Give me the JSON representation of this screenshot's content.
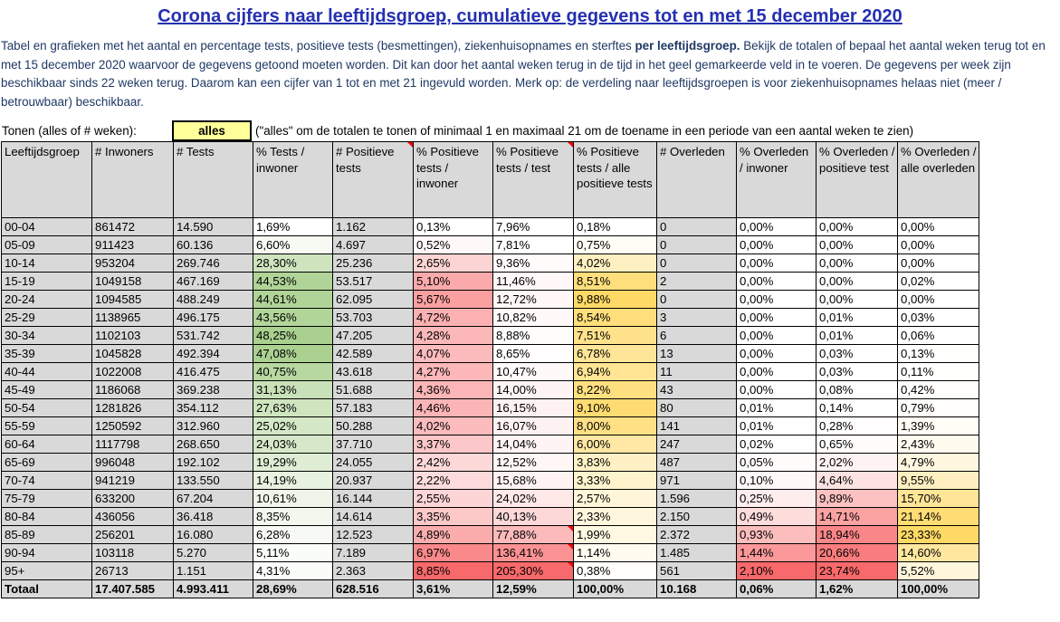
{
  "page": {
    "title": "Corona cijfers naar leeftijdsgroep, cumulatieve gegevens tot en met 15 december 2020",
    "intro": {
      "before": "Tabel en grafieken met het aantal en percentage tests, positieve tests (besmettingen), ziekenhuisopnames en sterftes ",
      "bold": "per leeftijdsgroep.",
      "after": " Bekijk de totalen of bepaal het aantal weken terug tot en met 15 december 2020 waarvoor de gegevens getoond moeten worden. Dit kan door het aantal weken terug in de tijd in het geel gemarkeerde veld in te voeren. De gegevens per week zijn beschikbaar sinds 22 weken terug. Daarom kan een cijfer van 1 tot en met 21 ingevuld worden. Merk op: de verdeling naar leeftijdsgroepen is voor ziekenhuisopnames helaas niet (meer / betrouwbaar) beschikbaar."
    }
  },
  "controls": {
    "label": "Tonen (alles of # weken):",
    "value": "alles",
    "hint": "(\"alles\" om de totalen te tonen of minimaal 1 en maximaal 21 om de toename in een periode van een aantal weken te zien)"
  },
  "colors": {
    "cell_gray": "#D9D9D9",
    "accent_yellow": "#FFFF99",
    "title_blue": "#2430B0",
    "text_blue": "#1F3864",
    "comment_red": "#FF0000",
    "scale_green": "#A9D08E",
    "scale_red": "#F8696B",
    "scale_yellow": "#FFD966"
  },
  "table": {
    "headers": [
      "Leeftijdsgroep",
      "# Inwoners",
      "# Tests",
      "% Tests / inwoner",
      "# Positieve tests",
      "% Positieve tests / inwoner",
      "% Positieve tests / test",
      "% Positieve tests / alle positieve tests",
      "# Overleden",
      "% Overleden / inwoner",
      "% Overleden / positieve test",
      "% Overleden / alle overleden"
    ],
    "header_comment_cols": [
      4,
      6
    ],
    "cell_comments": [
      {
        "row": 17,
        "col": 6
      },
      {
        "row": 18,
        "col": 6
      },
      {
        "row": 19,
        "col": 6
      }
    ],
    "rows": [
      [
        "00-04",
        "861472",
        "14.590",
        "1,69%",
        "1.162",
        "0,13%",
        "7,96%",
        "0,18%",
        "0",
        "0,00%",
        "0,00%",
        "0,00%"
      ],
      [
        "05-09",
        "911423",
        "60.136",
        "6,60%",
        "4.697",
        "0,52%",
        "7,81%",
        "0,75%",
        "0",
        "0,00%",
        "0,00%",
        "0,00%"
      ],
      [
        "10-14",
        "953204",
        "269.746",
        "28,30%",
        "25.236",
        "2,65%",
        "9,36%",
        "4,02%",
        "0",
        "0,00%",
        "0,00%",
        "0,00%"
      ],
      [
        "15-19",
        "1049158",
        "467.169",
        "44,53%",
        "53.517",
        "5,10%",
        "11,46%",
        "8,51%",
        "2",
        "0,00%",
        "0,00%",
        "0,02%"
      ],
      [
        "20-24",
        "1094585",
        "488.249",
        "44,61%",
        "62.095",
        "5,67%",
        "12,72%",
        "9,88%",
        "0",
        "0,00%",
        "0,00%",
        "0,00%"
      ],
      [
        "25-29",
        "1138965",
        "496.175",
        "43,56%",
        "53.703",
        "4,72%",
        "10,82%",
        "8,54%",
        "3",
        "0,00%",
        "0,01%",
        "0,03%"
      ],
      [
        "30-34",
        "1102103",
        "531.742",
        "48,25%",
        "47.205",
        "4,28%",
        "8,88%",
        "7,51%",
        "6",
        "0,00%",
        "0,01%",
        "0,06%"
      ],
      [
        "35-39",
        "1045828",
        "492.394",
        "47,08%",
        "42.589",
        "4,07%",
        "8,65%",
        "6,78%",
        "13",
        "0,00%",
        "0,03%",
        "0,13%"
      ],
      [
        "40-44",
        "1022008",
        "416.475",
        "40,75%",
        "43.618",
        "4,27%",
        "10,47%",
        "6,94%",
        "11",
        "0,00%",
        "0,03%",
        "0,11%"
      ],
      [
        "45-49",
        "1186068",
        "369.238",
        "31,13%",
        "51.688",
        "4,36%",
        "14,00%",
        "8,22%",
        "43",
        "0,00%",
        "0,08%",
        "0,42%"
      ],
      [
        "50-54",
        "1281826",
        "354.112",
        "27,63%",
        "57.183",
        "4,46%",
        "16,15%",
        "9,10%",
        "80",
        "0,01%",
        "0,14%",
        "0,79%"
      ],
      [
        "55-59",
        "1250592",
        "312.960",
        "25,02%",
        "50.288",
        "4,02%",
        "16,07%",
        "8,00%",
        "141",
        "0,01%",
        "0,28%",
        "1,39%"
      ],
      [
        "60-64",
        "1117798",
        "268.650",
        "24,03%",
        "37.710",
        "3,37%",
        "14,04%",
        "6,00%",
        "247",
        "0,02%",
        "0,65%",
        "2,43%"
      ],
      [
        "65-69",
        "996048",
        "192.102",
        "19,29%",
        "24.055",
        "2,42%",
        "12,52%",
        "3,83%",
        "487",
        "0,05%",
        "2,02%",
        "4,79%"
      ],
      [
        "70-74",
        "941219",
        "133.550",
        "14,19%",
        "20.937",
        "2,22%",
        "15,68%",
        "3,33%",
        "971",
        "0,10%",
        "4,64%",
        "9,55%"
      ],
      [
        "75-79",
        "633200",
        "67.204",
        "10,61%",
        "16.144",
        "2,55%",
        "24,02%",
        "2,57%",
        "1.596",
        "0,25%",
        "9,89%",
        "15,70%"
      ],
      [
        "80-84",
        "436056",
        "36.418",
        "8,35%",
        "14.614",
        "3,35%",
        "40,13%",
        "2,33%",
        "2.150",
        "0,49%",
        "14,71%",
        "21,14%"
      ],
      [
        "85-89",
        "256201",
        "16.080",
        "6,28%",
        "12.523",
        "4,89%",
        "77,88%",
        "1,99%",
        "2.372",
        "0,93%",
        "18,94%",
        "23,33%"
      ],
      [
        "90-94",
        "103118",
        "5.270",
        "5,11%",
        "7.189",
        "6,97%",
        "136,41%",
        "1,14%",
        "1.485",
        "1,44%",
        "20,66%",
        "14,60%"
      ],
      [
        "95+",
        "26713",
        "1.151",
        "4,31%",
        "2.363",
        "8,85%",
        "205,30%",
        "0,38%",
        "561",
        "2,10%",
        "23,74%",
        "5,52%"
      ]
    ],
    "total_row": [
      "Totaal",
      "17.407.585",
      "4.993.411",
      "28,69%",
      "628.516",
      "3,61%",
      "12,59%",
      "100,00%",
      "10.168",
      "0,06%",
      "1,62%",
      "100,00%"
    ]
  }
}
